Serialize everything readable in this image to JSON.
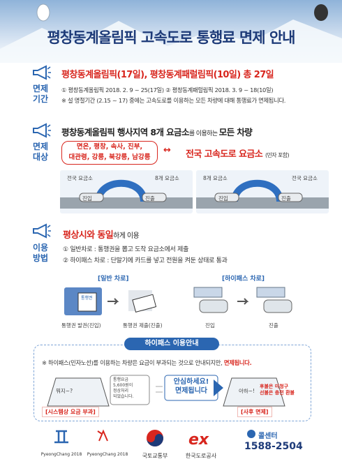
{
  "title": "평창동계올림픽 고속도로 통행료 면제 안내",
  "period": {
    "label": [
      "면제",
      "기간"
    ],
    "heading": "평창동계올림픽(17일), 평창동계패럴림픽(10일)  총 27일",
    "lines": [
      "① 평창동계올림픽 2018. 2. 9 ~ 25(17일)  ② 평창동계패럴림픽 2018. 3. 9 ~ 18(10일)",
      "※ 설 명절기간 (2.15 ~ 17) 중에는 고속도로를 이용하는 모든 차량에 대해 통행료가 면제됩니다."
    ]
  },
  "target": {
    "label": [
      "면제",
      "대상"
    ],
    "heading": [
      "평창동계올림픽 행사지역 8개 요금소",
      "를 이용하는 ",
      "모든 차량"
    ],
    "tollgates": [
      "면온, 평창, 속사, 진부,",
      "대관령, 강릉, 북강릉, 남강릉"
    ],
    "arrow": "↔",
    "nationwide": "전국 고속도로 요금소",
    "nationwide_note": "(민자 포함)",
    "diagrams": [
      {
        "from": "전국 요금소",
        "to": "8개 요금소",
        "entry": "진입",
        "exit": "진출"
      },
      {
        "from": "8개 요금소",
        "to": "전국 요금소",
        "entry": "진입",
        "exit": "진출"
      }
    ]
  },
  "usage": {
    "label": [
      "이용",
      "방법"
    ],
    "heading": [
      "평상시와 동일",
      "하게 이용"
    ],
    "lines": [
      "① 일반차로 : 통행권을 뽑고 도착 요금소에서 제출",
      "② 하이패스 차로 : 단말기에 카드를 넣고 전원을 켜둔 상태로 통과"
    ],
    "general": {
      "title": "[일반 차로]",
      "ticket": "통행권",
      "steps": [
        "통행권 발권(진입)",
        "통행권 제출(진출)"
      ]
    },
    "hipass": {
      "title": "[하이패스 차로]",
      "steps": [
        "진입",
        "진출"
      ]
    }
  },
  "hipass_notice": {
    "title": "하이패스 이용안내",
    "note": [
      "※ 하이패스(민자노선)를 이용하는 차량은 요금이 부과되는 것으로 안내되지만, ",
      "면제됩니다."
    ],
    "reaction_left": "뭐지~?",
    "screen": [
      "통행요금",
      "5,600원이",
      "정상처리",
      "되었습니다."
    ],
    "left_caption": "[시스템상 요금 부과]",
    "message": [
      "안심하세요!",
      "면제됩니다"
    ],
    "reaction_right": "아하~!",
    "refund": [
      "후불은 미청구",
      "선불은 충전 환불"
    ],
    "right_caption": "[사후 면제]"
  },
  "footer": {
    "emblem1": "PyeongChang 2018",
    "emblem2": "PyeongChang 2018",
    "ministry": "국토교통부",
    "logo": "ex",
    "corporation": "한국도로공사",
    "call_center": "콜센터",
    "phone": "1588-2504"
  }
}
